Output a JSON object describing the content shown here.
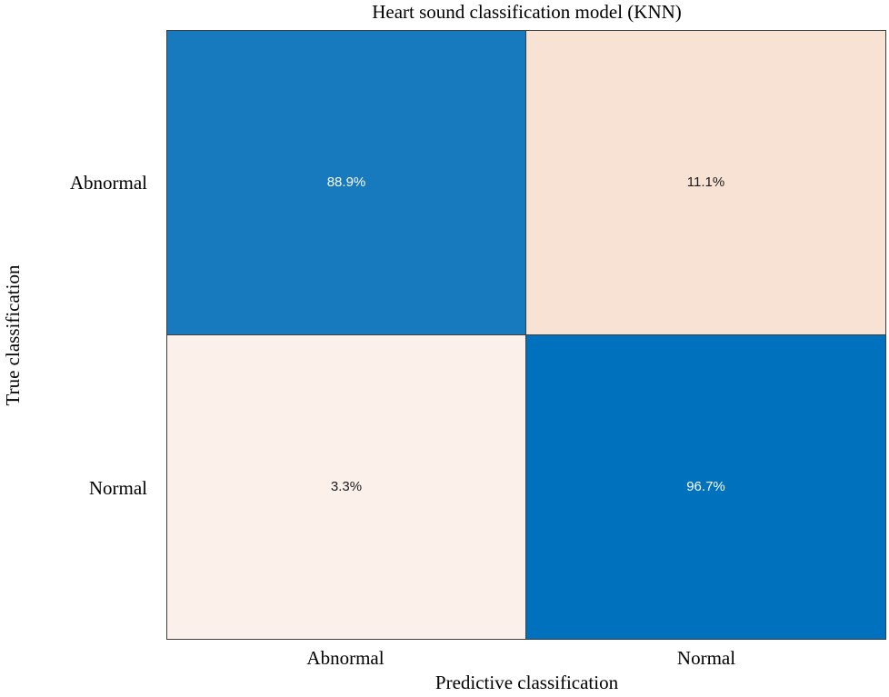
{
  "title": "Heart sound classification model (KNN)",
  "axes": {
    "x_label": "Predictive classification",
    "y_label": "True classification",
    "x_ticks": [
      "Abnormal",
      "Normal"
    ],
    "y_ticks": [
      "Abnormal",
      "Normal"
    ]
  },
  "colors": {
    "high_blue": "#1779BE",
    "higher_blue": "#0071BC",
    "low_peach": "#F8E2D4",
    "lower_cream": "#FCF0EB",
    "grid_line": "#3d3d3d",
    "text_on_dark": "#ffffff",
    "text_on_light": "#1a1a1a"
  },
  "chart_data": {
    "type": "heatmap",
    "title": "Heart sound classification model (KNN)",
    "xlabel": "Predictive classification",
    "ylabel": "True classification",
    "x_categories": [
      "Abnormal",
      "Normal"
    ],
    "y_categories": [
      "Abnormal",
      "Normal"
    ],
    "values_percent": [
      [
        88.9,
        11.1
      ],
      [
        3.3,
        96.7
      ]
    ],
    "cell_labels": [
      [
        "88.9%",
        "11.1%"
      ],
      [
        "3.3%",
        "96.7%"
      ]
    ],
    "cell_colors": [
      [
        "#1779BE",
        "#F8E2D4"
      ],
      [
        "#FCF0EB",
        "#0071BC"
      ]
    ],
    "cell_text_colors": [
      [
        "#ffffff",
        "#1a1a1a"
      ],
      [
        "#1a1a1a",
        "#ffffff"
      ]
    ],
    "legend": "none",
    "grid": true
  }
}
